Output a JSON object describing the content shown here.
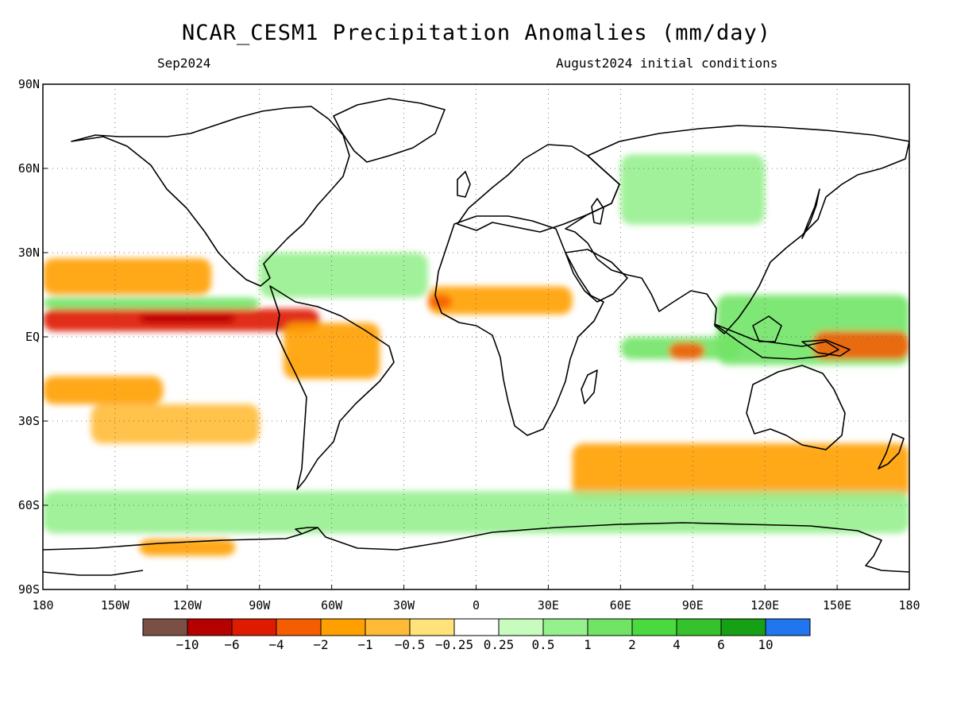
{
  "title": "NCAR_CESM1 Precipitation Anomalies (mm/day)",
  "subtitle_left": "Sep2024",
  "subtitle_right": "August2024 initial conditions",
  "map": {
    "projection": "equirectangular",
    "lon_range": [
      -180,
      180
    ],
    "lat_range": [
      -90,
      90
    ],
    "grid": "dotted",
    "x_ticks": [
      "180",
      "150W",
      "120W",
      "90W",
      "60W",
      "30W",
      "0",
      "30E",
      "60E",
      "90E",
      "120E",
      "150E",
      "180"
    ],
    "y_ticks": [
      "90N",
      "60N",
      "30N",
      "EQ",
      "30S",
      "60S",
      "90S"
    ]
  },
  "colorbar": {
    "colors": [
      "#7b5044",
      "#b70000",
      "#de1a00",
      "#f55e00",
      "#ffa000",
      "#ffbb36",
      "#ffe27a",
      "#ffffff",
      "#c8fbbe",
      "#96f08e",
      "#71e466",
      "#4ad93f",
      "#35c22c",
      "#16a015",
      "#2176f0"
    ],
    "labels": [
      "−10",
      "−6",
      "−4",
      "−2",
      "−1",
      "−0.5",
      "−0.25",
      "0.25",
      "0.5",
      "1",
      "2",
      "4",
      "6",
      "10"
    ]
  },
  "chart_data": {
    "type": "heatmap",
    "variable": "Precipitation Anomalies",
    "units": "mm/day",
    "levels": [
      -10,
      -6,
      -4,
      -2,
      -1,
      -0.5,
      -0.25,
      0.25,
      0.5,
      1,
      2,
      4,
      6,
      10
    ],
    "anomaly_regions": [
      {
        "lon": [
          -180,
          -65
        ],
        "lat": [
          2,
          10
        ],
        "value": -4
      },
      {
        "lon": [
          -140,
          -100
        ],
        "lat": [
          5,
          8
        ],
        "value": -6
      },
      {
        "lon": [
          -180,
          -90
        ],
        "lat": [
          10,
          14
        ],
        "value": 2
      },
      {
        "lon": [
          -180,
          -110
        ],
        "lat": [
          15,
          28
        ],
        "value": -1
      },
      {
        "lon": [
          -180,
          -130
        ],
        "lat": [
          -24,
          -14
        ],
        "value": -1
      },
      {
        "lon": [
          -160,
          -90
        ],
        "lat": [
          -38,
          -24
        ],
        "value": -0.5
      },
      {
        "lon": [
          -20,
          40
        ],
        "lat": [
          8,
          18
        ],
        "value": -1
      },
      {
        "lon": [
          -20,
          -10
        ],
        "lat": [
          10,
          15
        ],
        "value": -2
      },
      {
        "lon": [
          100,
          180
        ],
        "lat": [
          -10,
          15
        ],
        "value": 2
      },
      {
        "lon": [
          140,
          180
        ],
        "lat": [
          -8,
          2
        ],
        "value": -2
      },
      {
        "lon": [
          60,
          110
        ],
        "lat": [
          -8,
          0
        ],
        "value": 2
      },
      {
        "lon": [
          80,
          95
        ],
        "lat": [
          -8,
          -2
        ],
        "value": -2
      },
      {
        "lon": [
          40,
          180
        ],
        "lat": [
          -58,
          -38
        ],
        "value": -1
      },
      {
        "lon": [
          -80,
          -40
        ],
        "lat": [
          -15,
          5
        ],
        "value": -1
      },
      {
        "lon": [
          -180,
          180
        ],
        "lat": [
          -70,
          -55
        ],
        "value": 1
      },
      {
        "lon": [
          -90,
          -20
        ],
        "lat": [
          14,
          30
        ],
        "value": 1
      },
      {
        "lon": [
          60,
          120
        ],
        "lat": [
          40,
          65
        ],
        "value": 1
      },
      {
        "lon": [
          -140,
          -100
        ],
        "lat": [
          -78,
          -72
        ],
        "value": -1
      }
    ]
  }
}
